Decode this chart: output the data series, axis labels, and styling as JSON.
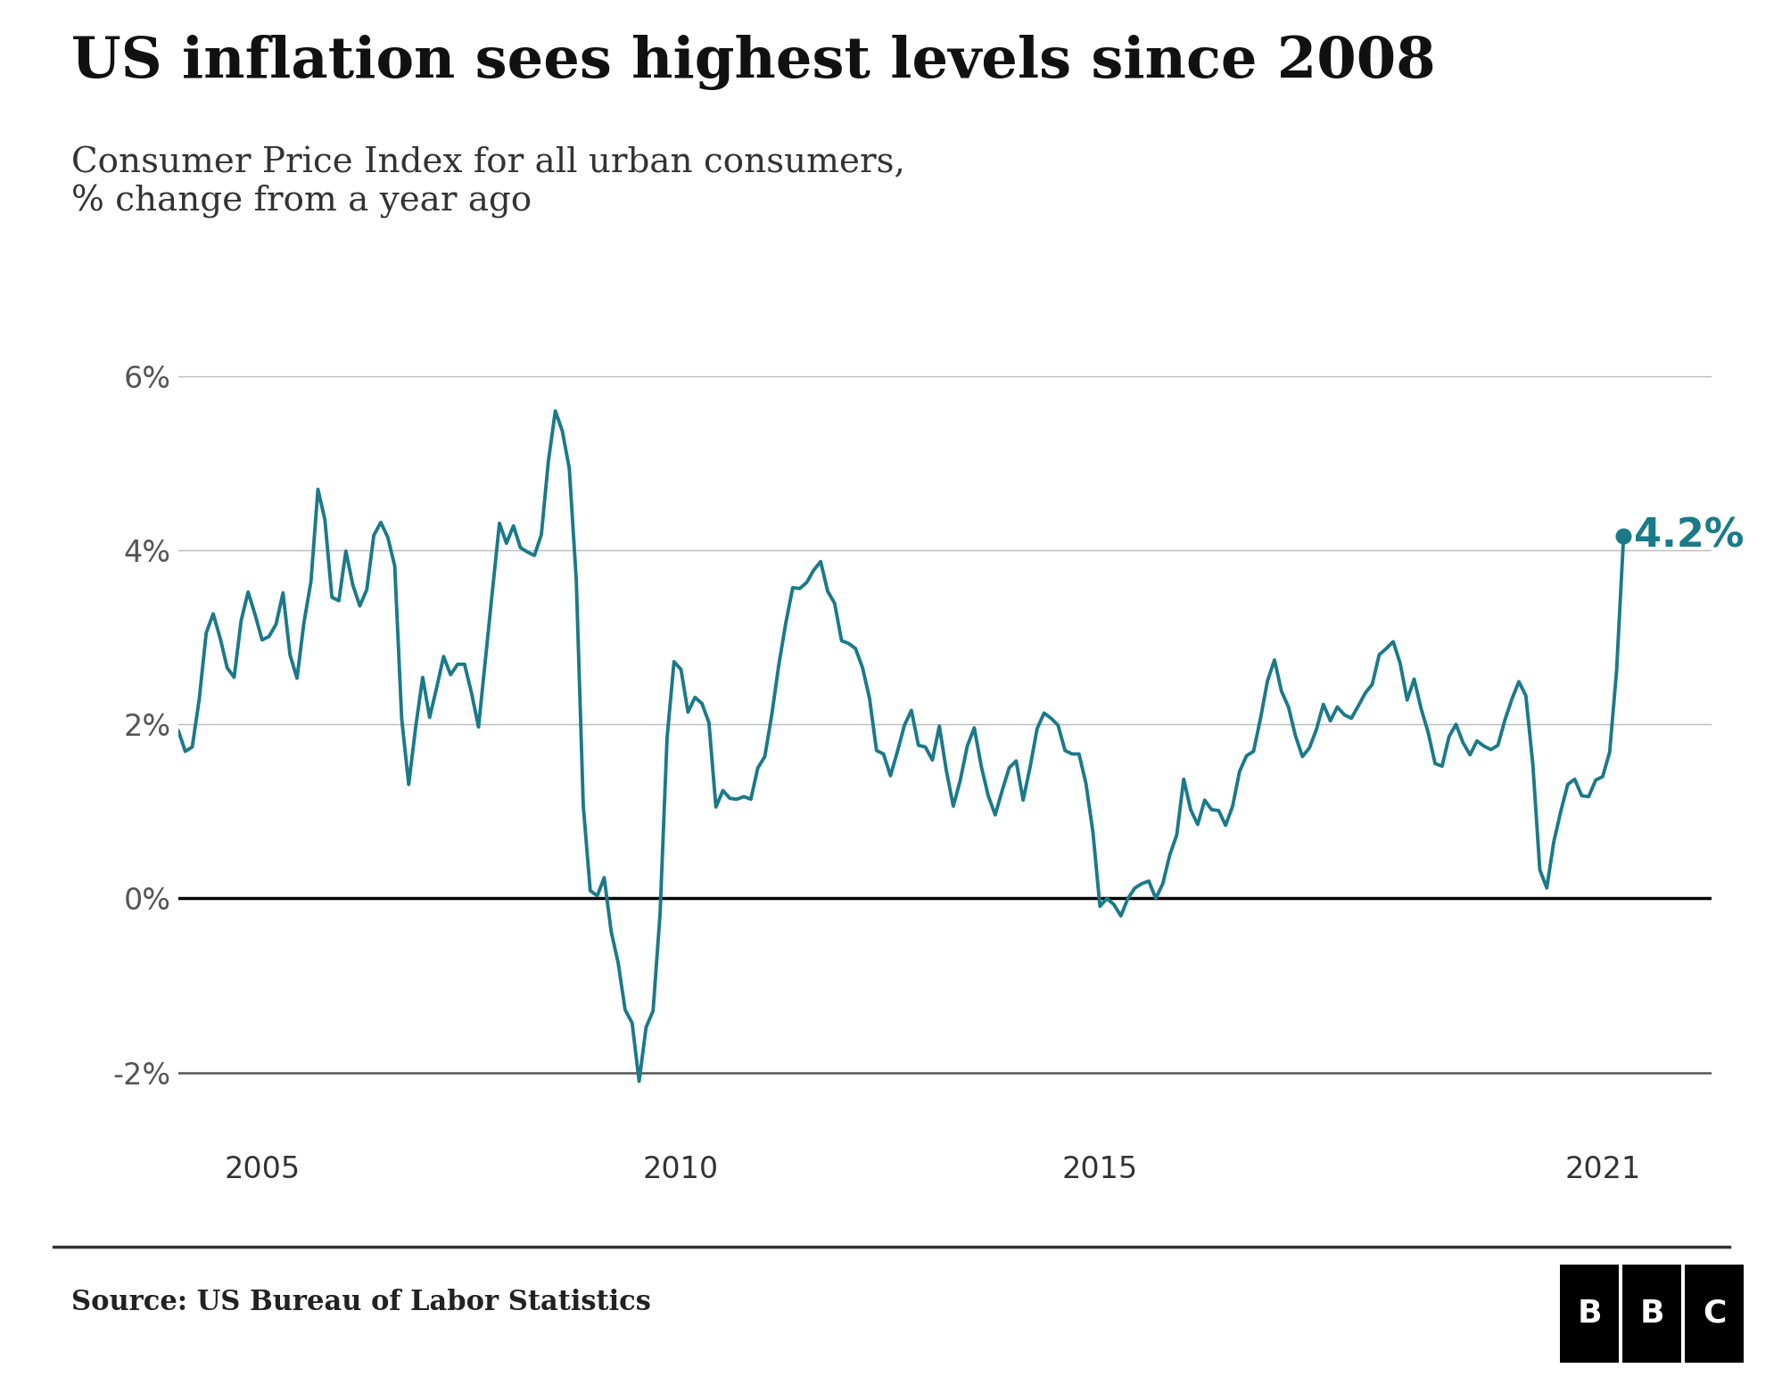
{
  "title": "US inflation sees highest levels since 2008",
  "subtitle": "Consumer Price Index for all urban consumers,\n% change from a year ago",
  "source": "Source: US Bureau of Labor Statistics",
  "line_color": "#1a7a8a",
  "annotation_color": "#1a7a8a",
  "annotation_value": "4.2%",
  "background_color": "#ffffff",
  "yticks": [
    -2,
    0,
    2,
    4,
    6
  ],
  "ylim": [
    -2.8,
    6.8
  ],
  "xlim": [
    2004.0,
    2022.3
  ],
  "xticks": [
    2005,
    2010,
    2015,
    2021
  ],
  "cpi_data": [
    [
      "2004-01",
      1.93
    ],
    [
      "2004-02",
      1.69
    ],
    [
      "2004-03",
      1.74
    ],
    [
      "2004-04",
      2.29
    ],
    [
      "2004-05",
      3.05
    ],
    [
      "2004-06",
      3.27
    ],
    [
      "2004-07",
      2.99
    ],
    [
      "2004-08",
      2.65
    ],
    [
      "2004-09",
      2.54
    ],
    [
      "2004-10",
      3.19
    ],
    [
      "2004-11",
      3.52
    ],
    [
      "2004-12",
      3.26
    ],
    [
      "2005-01",
      2.97
    ],
    [
      "2005-02",
      3.01
    ],
    [
      "2005-03",
      3.15
    ],
    [
      "2005-04",
      3.51
    ],
    [
      "2005-05",
      2.8
    ],
    [
      "2005-06",
      2.53
    ],
    [
      "2005-07",
      3.17
    ],
    [
      "2005-08",
      3.64
    ],
    [
      "2005-09",
      4.7
    ],
    [
      "2005-10",
      4.35
    ],
    [
      "2005-11",
      3.46
    ],
    [
      "2005-12",
      3.42
    ],
    [
      "2006-01",
      3.99
    ],
    [
      "2006-02",
      3.6
    ],
    [
      "2006-03",
      3.36
    ],
    [
      "2006-04",
      3.55
    ],
    [
      "2006-05",
      4.17
    ],
    [
      "2006-06",
      4.32
    ],
    [
      "2006-07",
      4.15
    ],
    [
      "2006-08",
      3.82
    ],
    [
      "2006-09",
      2.06
    ],
    [
      "2006-10",
      1.31
    ],
    [
      "2006-11",
      1.97
    ],
    [
      "2006-12",
      2.54
    ],
    [
      "2007-01",
      2.08
    ],
    [
      "2007-02",
      2.42
    ],
    [
      "2007-03",
      2.78
    ],
    [
      "2007-04",
      2.57
    ],
    [
      "2007-05",
      2.69
    ],
    [
      "2007-06",
      2.69
    ],
    [
      "2007-07",
      2.36
    ],
    [
      "2007-08",
      1.97
    ],
    [
      "2007-09",
      2.76
    ],
    [
      "2007-10",
      3.54
    ],
    [
      "2007-11",
      4.31
    ],
    [
      "2007-12",
      4.08
    ],
    [
      "2008-01",
      4.28
    ],
    [
      "2008-02",
      4.03
    ],
    [
      "2008-03",
      3.98
    ],
    [
      "2008-04",
      3.94
    ],
    [
      "2008-05",
      4.18
    ],
    [
      "2008-06",
      5.02
    ],
    [
      "2008-07",
      5.6
    ],
    [
      "2008-08",
      5.37
    ],
    [
      "2008-09",
      4.94
    ],
    [
      "2008-10",
      3.66
    ],
    [
      "2008-11",
      1.07
    ],
    [
      "2008-12",
      0.09
    ],
    [
      "2009-01",
      0.03
    ],
    [
      "2009-02",
      0.24
    ],
    [
      "2009-03",
      -0.38
    ],
    [
      "2009-04",
      -0.74
    ],
    [
      "2009-05",
      -1.28
    ],
    [
      "2009-06",
      -1.43
    ],
    [
      "2009-07",
      -2.1
    ],
    [
      "2009-08",
      -1.48
    ],
    [
      "2009-09",
      -1.29
    ],
    [
      "2009-10",
      -0.18
    ],
    [
      "2009-11",
      1.84
    ],
    [
      "2009-12",
      2.72
    ],
    [
      "2010-01",
      2.63
    ],
    [
      "2010-02",
      2.14
    ],
    [
      "2010-03",
      2.31
    ],
    [
      "2010-04",
      2.24
    ],
    [
      "2010-05",
      2.02
    ],
    [
      "2010-06",
      1.05
    ],
    [
      "2010-07",
      1.24
    ],
    [
      "2010-08",
      1.15
    ],
    [
      "2010-09",
      1.14
    ],
    [
      "2010-10",
      1.17
    ],
    [
      "2010-11",
      1.14
    ],
    [
      "2010-12",
      1.5
    ],
    [
      "2011-01",
      1.63
    ],
    [
      "2011-02",
      2.11
    ],
    [
      "2011-03",
      2.68
    ],
    [
      "2011-04",
      3.16
    ],
    [
      "2011-05",
      3.57
    ],
    [
      "2011-06",
      3.56
    ],
    [
      "2011-07",
      3.63
    ],
    [
      "2011-08",
      3.77
    ],
    [
      "2011-09",
      3.87
    ],
    [
      "2011-10",
      3.53
    ],
    [
      "2011-11",
      3.39
    ],
    [
      "2011-12",
      2.96
    ],
    [
      "2012-01",
      2.93
    ],
    [
      "2012-02",
      2.87
    ],
    [
      "2012-03",
      2.65
    ],
    [
      "2012-04",
      2.3
    ],
    [
      "2012-05",
      1.7
    ],
    [
      "2012-06",
      1.66
    ],
    [
      "2012-07",
      1.41
    ],
    [
      "2012-08",
      1.69
    ],
    [
      "2012-09",
      1.99
    ],
    [
      "2012-10",
      2.16
    ],
    [
      "2012-11",
      1.76
    ],
    [
      "2012-12",
      1.74
    ],
    [
      "2013-01",
      1.59
    ],
    [
      "2013-02",
      1.98
    ],
    [
      "2013-03",
      1.47
    ],
    [
      "2013-04",
      1.06
    ],
    [
      "2013-05",
      1.36
    ],
    [
      "2013-06",
      1.75
    ],
    [
      "2013-07",
      1.96
    ],
    [
      "2013-08",
      1.52
    ],
    [
      "2013-09",
      1.18
    ],
    [
      "2013-10",
      0.96
    ],
    [
      "2013-11",
      1.24
    ],
    [
      "2013-12",
      1.5
    ],
    [
      "2014-01",
      1.58
    ],
    [
      "2014-02",
      1.13
    ],
    [
      "2014-03",
      1.51
    ],
    [
      "2014-04",
      1.95
    ],
    [
      "2014-05",
      2.13
    ],
    [
      "2014-06",
      2.07
    ],
    [
      "2014-07",
      1.99
    ],
    [
      "2014-08",
      1.7
    ],
    [
      "2014-09",
      1.66
    ],
    [
      "2014-10",
      1.66
    ],
    [
      "2014-11",
      1.32
    ],
    [
      "2014-12",
      0.76
    ],
    [
      "2015-01",
      -0.09
    ],
    [
      "2015-02",
      0.0
    ],
    [
      "2015-03",
      -0.07
    ],
    [
      "2015-04",
      -0.2
    ],
    [
      "2015-05",
      0.0
    ],
    [
      "2015-06",
      0.12
    ],
    [
      "2015-07",
      0.17
    ],
    [
      "2015-08",
      0.2
    ],
    [
      "2015-09",
      0.0
    ],
    [
      "2015-10",
      0.17
    ],
    [
      "2015-11",
      0.5
    ],
    [
      "2015-12",
      0.73
    ],
    [
      "2016-01",
      1.37
    ],
    [
      "2016-02",
      1.02
    ],
    [
      "2016-03",
      0.85
    ],
    [
      "2016-04",
      1.13
    ],
    [
      "2016-05",
      1.02
    ],
    [
      "2016-06",
      1.01
    ],
    [
      "2016-07",
      0.84
    ],
    [
      "2016-08",
      1.06
    ],
    [
      "2016-09",
      1.46
    ],
    [
      "2016-10",
      1.64
    ],
    [
      "2016-11",
      1.69
    ],
    [
      "2016-12",
      2.07
    ],
    [
      "2017-01",
      2.5
    ],
    [
      "2017-02",
      2.74
    ],
    [
      "2017-03",
      2.38
    ],
    [
      "2017-04",
      2.2
    ],
    [
      "2017-05",
      1.87
    ],
    [
      "2017-06",
      1.63
    ],
    [
      "2017-07",
      1.73
    ],
    [
      "2017-08",
      1.94
    ],
    [
      "2017-09",
      2.23
    ],
    [
      "2017-10",
      2.04
    ],
    [
      "2017-11",
      2.2
    ],
    [
      "2017-12",
      2.11
    ],
    [
      "2018-01",
      2.07
    ],
    [
      "2018-02",
      2.21
    ],
    [
      "2018-03",
      2.36
    ],
    [
      "2018-04",
      2.46
    ],
    [
      "2018-05",
      2.8
    ],
    [
      "2018-06",
      2.87
    ],
    [
      "2018-07",
      2.95
    ],
    [
      "2018-08",
      2.7
    ],
    [
      "2018-09",
      2.28
    ],
    [
      "2018-10",
      2.52
    ],
    [
      "2018-11",
      2.18
    ],
    [
      "2018-12",
      1.91
    ],
    [
      "2019-01",
      1.55
    ],
    [
      "2019-02",
      1.52
    ],
    [
      "2019-03",
      1.86
    ],
    [
      "2019-04",
      2.0
    ],
    [
      "2019-05",
      1.79
    ],
    [
      "2019-06",
      1.65
    ],
    [
      "2019-07",
      1.81
    ],
    [
      "2019-08",
      1.75
    ],
    [
      "2019-09",
      1.71
    ],
    [
      "2019-10",
      1.76
    ],
    [
      "2019-11",
      2.05
    ],
    [
      "2019-12",
      2.29
    ],
    [
      "2020-01",
      2.49
    ],
    [
      "2020-02",
      2.33
    ],
    [
      "2020-03",
      1.54
    ],
    [
      "2020-04",
      0.33
    ],
    [
      "2020-05",
      0.12
    ],
    [
      "2020-06",
      0.65
    ],
    [
      "2020-07",
      1.0
    ],
    [
      "2020-08",
      1.31
    ],
    [
      "2020-09",
      1.37
    ],
    [
      "2020-10",
      1.18
    ],
    [
      "2020-11",
      1.17
    ],
    [
      "2020-12",
      1.36
    ],
    [
      "2021-01",
      1.4
    ],
    [
      "2021-02",
      1.68
    ],
    [
      "2021-03",
      2.62
    ],
    [
      "2021-04",
      4.16
    ]
  ]
}
